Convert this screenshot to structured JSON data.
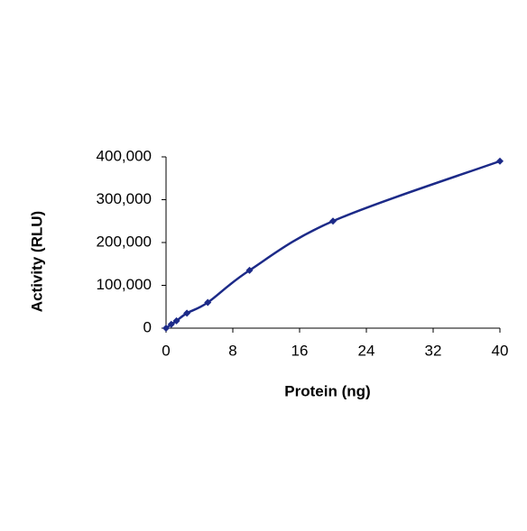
{
  "chart_data": {
    "type": "line",
    "x_label": "Protein (ng)",
    "y_label": "Activity (RLU)",
    "x": [
      0,
      0.625,
      1.25,
      2.5,
      5,
      10,
      20,
      40
    ],
    "series": [
      {
        "color": "#1c2a88",
        "values": [
          0,
          9000,
          17000,
          35000,
          60000,
          135000,
          250000,
          390000
        ]
      }
    ],
    "xlim": [
      0,
      40
    ],
    "xticks": [
      0,
      8,
      16,
      24,
      32,
      40
    ],
    "ylim": [
      0,
      400000
    ],
    "yticks": [
      0,
      {
        "value": 100000,
        "label": "100,000"
      },
      {
        "value": 200000,
        "label": "200,000"
      },
      {
        "value": 300000,
        "label": "300,000"
      },
      {
        "value": 400000,
        "label": "400,000"
      }
    ],
    "grid": false
  }
}
